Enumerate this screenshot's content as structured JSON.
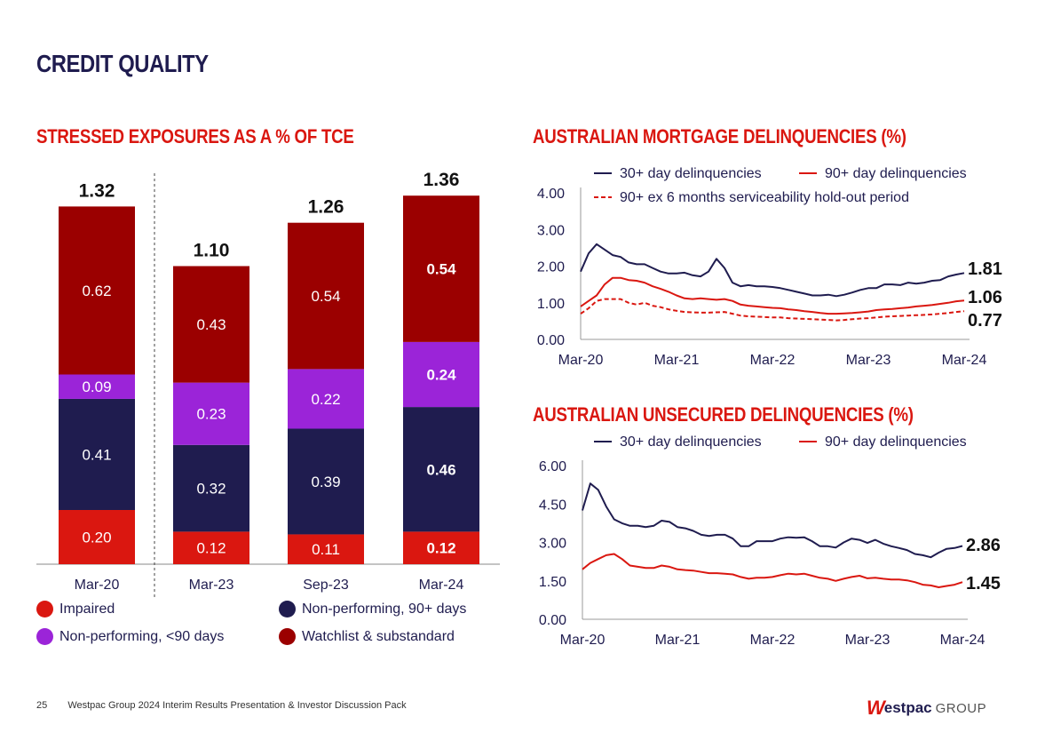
{
  "page": {
    "title": "CREDIT QUALITY",
    "footer_page": "25",
    "footer_text": "Westpac Group 2024 Interim Results Presentation & Investor Discussion Pack",
    "logo_mark": "W",
    "logo_brand": "estpac",
    "logo_group": "GROUP"
  },
  "colors": {
    "impaired": "#da1710",
    "np90": "#1f1c4f",
    "nplt90": "#9b24d8",
    "watchlist": "#9b0000",
    "navy": "#1f1c4f",
    "red": "#da1710"
  },
  "chart_data": [
    {
      "id": "stressed",
      "type": "bar",
      "title": "STRESSED EXPOSURES AS A % OF TCE",
      "stacked": true,
      "categories": [
        "Mar-20",
        "Mar-23",
        "Sep-23",
        "Mar-24"
      ],
      "totals": [
        "1.32",
        "1.10",
        "1.26",
        "1.36"
      ],
      "series": [
        {
          "name": "Impaired",
          "key": "impaired",
          "values": [
            0.2,
            0.12,
            0.11,
            0.12
          ],
          "labels": [
            "0.20",
            "0.12",
            "0.11",
            "0.12"
          ]
        },
        {
          "name": "Non-performing, 90+ days",
          "key": "np90",
          "values": [
            0.41,
            0.32,
            0.39,
            0.46
          ],
          "labels": [
            "0.41",
            "0.32",
            "0.39",
            "0.46"
          ]
        },
        {
          "name": "Non-performing, <90 days",
          "key": "nplt90",
          "values": [
            0.09,
            0.23,
            0.22,
            0.24
          ],
          "labels": [
            "0.09",
            "0.23",
            "0.22",
            "0.24"
          ]
        },
        {
          "name": "Watchlist & substandard",
          "key": "watchlist",
          "values": [
            0.62,
            0.43,
            0.54,
            0.54
          ],
          "labels": [
            "0.62",
            "0.43",
            "0.54",
            "0.54"
          ]
        }
      ],
      "legend": [
        "Impaired",
        "Non-performing, 90+ days",
        "Non-performing, <90 days",
        "Watchlist & substandard"
      ]
    },
    {
      "id": "mortgage",
      "type": "line",
      "title": "AUSTRALIAN MORTGAGE DELINQUENCIES (%)",
      "ylim": [
        0,
        4
      ],
      "yticks": [
        "0.00",
        "1.00",
        "2.00",
        "3.00",
        "4.00"
      ],
      "ytick_values": [
        0,
        1,
        2,
        3,
        4
      ],
      "xticks": [
        "Mar-20",
        "Mar-21",
        "Mar-22",
        "Mar-23",
        "Mar-24"
      ],
      "points_per_series": 49,
      "series": [
        {
          "name": "30+ day delinquencies",
          "end_label": "1.81",
          "values": [
            1.85,
            2.35,
            2.6,
            2.45,
            2.3,
            2.25,
            2.1,
            2.05,
            2.05,
            1.95,
            1.85,
            1.8,
            1.8,
            1.82,
            1.75,
            1.72,
            1.85,
            2.2,
            1.95,
            1.55,
            1.45,
            1.48,
            1.45,
            1.45,
            1.43,
            1.4,
            1.35,
            1.3,
            1.25,
            1.2,
            1.2,
            1.22,
            1.18,
            1.22,
            1.28,
            1.35,
            1.4,
            1.4,
            1.5,
            1.5,
            1.48,
            1.55,
            1.52,
            1.55,
            1.6,
            1.62,
            1.72,
            1.77,
            1.81
          ]
        },
        {
          "name": "90+ day delinquencies",
          "end_label": "1.06",
          "values": [
            0.9,
            1.05,
            1.2,
            1.5,
            1.68,
            1.68,
            1.62,
            1.6,
            1.55,
            1.45,
            1.38,
            1.3,
            1.2,
            1.12,
            1.1,
            1.12,
            1.1,
            1.08,
            1.1,
            1.05,
            0.95,
            0.92,
            0.9,
            0.88,
            0.86,
            0.85,
            0.82,
            0.8,
            0.77,
            0.75,
            0.72,
            0.7,
            0.7,
            0.71,
            0.72,
            0.74,
            0.76,
            0.8,
            0.82,
            0.83,
            0.85,
            0.87,
            0.9,
            0.92,
            0.94,
            0.97,
            1.0,
            1.04,
            1.06
          ]
        },
        {
          "name": "90+ ex 6 months serviceability hold-out period",
          "end_label": "0.77",
          "dashed": true,
          "values": [
            0.7,
            0.85,
            1.05,
            1.1,
            1.1,
            1.1,
            1.0,
            0.95,
            1.0,
            0.92,
            0.88,
            0.82,
            0.78,
            0.75,
            0.74,
            0.73,
            0.73,
            0.74,
            0.75,
            0.7,
            0.65,
            0.63,
            0.62,
            0.61,
            0.6,
            0.6,
            0.58,
            0.57,
            0.56,
            0.55,
            0.54,
            0.53,
            0.52,
            0.53,
            0.55,
            0.57,
            0.58,
            0.6,
            0.62,
            0.63,
            0.64,
            0.65,
            0.66,
            0.67,
            0.68,
            0.7,
            0.72,
            0.75,
            0.77
          ]
        }
      ]
    },
    {
      "id": "unsecured",
      "type": "line",
      "title": "AUSTRALIAN UNSECURED DELINQUENCIES (%)",
      "ylim": [
        0,
        6
      ],
      "yticks": [
        "0.00",
        "1.50",
        "3.00",
        "4.50",
        "6.00"
      ],
      "ytick_values": [
        0,
        1.5,
        3,
        4.5,
        6
      ],
      "xticks": [
        "Mar-20",
        "Mar-21",
        "Mar-22",
        "Mar-23",
        "Mar-24"
      ],
      "points_per_series": 49,
      "series": [
        {
          "name": "30+ day delinquencies",
          "end_label": "2.86",
          "values": [
            4.25,
            5.3,
            5.05,
            4.4,
            3.9,
            3.75,
            3.65,
            3.65,
            3.6,
            3.65,
            3.85,
            3.8,
            3.6,
            3.55,
            3.45,
            3.3,
            3.25,
            3.3,
            3.3,
            3.15,
            2.85,
            2.85,
            3.05,
            3.05,
            3.05,
            3.15,
            3.2,
            3.18,
            3.2,
            3.05,
            2.85,
            2.85,
            2.8,
            3.0,
            3.15,
            3.1,
            2.98,
            3.1,
            2.95,
            2.85,
            2.78,
            2.7,
            2.55,
            2.5,
            2.42,
            2.6,
            2.75,
            2.78,
            2.86
          ]
        },
        {
          "name": "90+ day delinquencies",
          "end_label": "1.45",
          "values": [
            1.95,
            2.2,
            2.35,
            2.5,
            2.55,
            2.35,
            2.1,
            2.05,
            2.0,
            2.0,
            2.1,
            2.05,
            1.95,
            1.92,
            1.9,
            1.85,
            1.8,
            1.8,
            1.78,
            1.75,
            1.65,
            1.58,
            1.62,
            1.62,
            1.65,
            1.72,
            1.78,
            1.75,
            1.78,
            1.7,
            1.62,
            1.58,
            1.5,
            1.58,
            1.65,
            1.7,
            1.6,
            1.62,
            1.58,
            1.55,
            1.55,
            1.52,
            1.45,
            1.35,
            1.32,
            1.25,
            1.3,
            1.35,
            1.45
          ]
        }
      ]
    }
  ]
}
